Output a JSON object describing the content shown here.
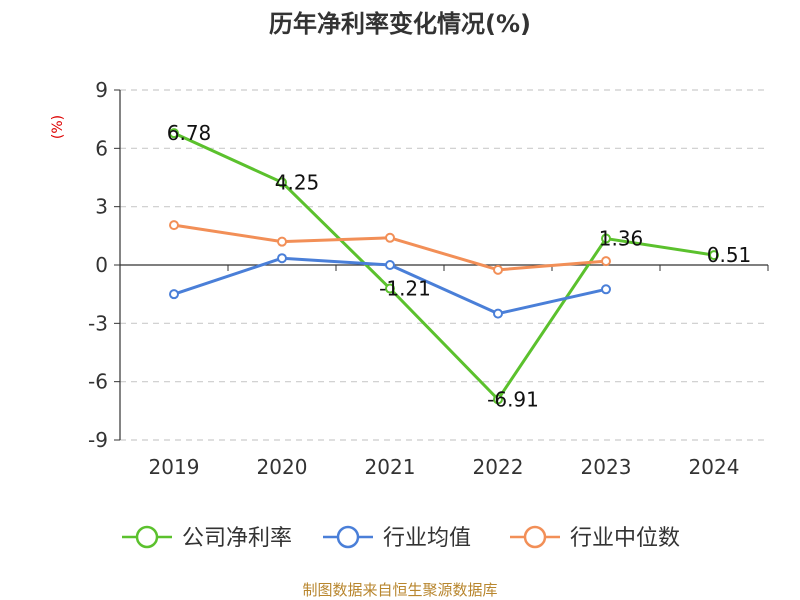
{
  "chart_data": {
    "type": "line",
    "title": "历年净利率变化情况(%)",
    "ylabel": "(%)",
    "categories": [
      "2019",
      "2020",
      "2021",
      "2022",
      "2023",
      "2024"
    ],
    "ylim": [
      -9,
      9
    ],
    "yticks": [
      9,
      6,
      3,
      0,
      -3,
      -6,
      -9
    ],
    "grid": true,
    "legend_position": "bottom",
    "series": [
      {
        "name": "公司净利率",
        "color": "#5bc12d",
        "values": [
          6.78,
          4.25,
          -1.21,
          -6.91,
          1.36,
          0.51
        ],
        "labels": [
          "6.78",
          "4.25",
          "-1.21",
          "-6.91",
          "1.36",
          "0.51"
        ]
      },
      {
        "name": "行业均值",
        "color": "#4a7fd8",
        "values": [
          -1.5,
          0.35,
          0.0,
          -2.5,
          -1.25,
          null
        ]
      },
      {
        "name": "行业中位数",
        "color": "#f28f57",
        "values": [
          2.05,
          1.2,
          1.4,
          -0.25,
          0.2,
          null
        ]
      }
    ],
    "source": "制图数据来自恒生聚源数据库"
  }
}
